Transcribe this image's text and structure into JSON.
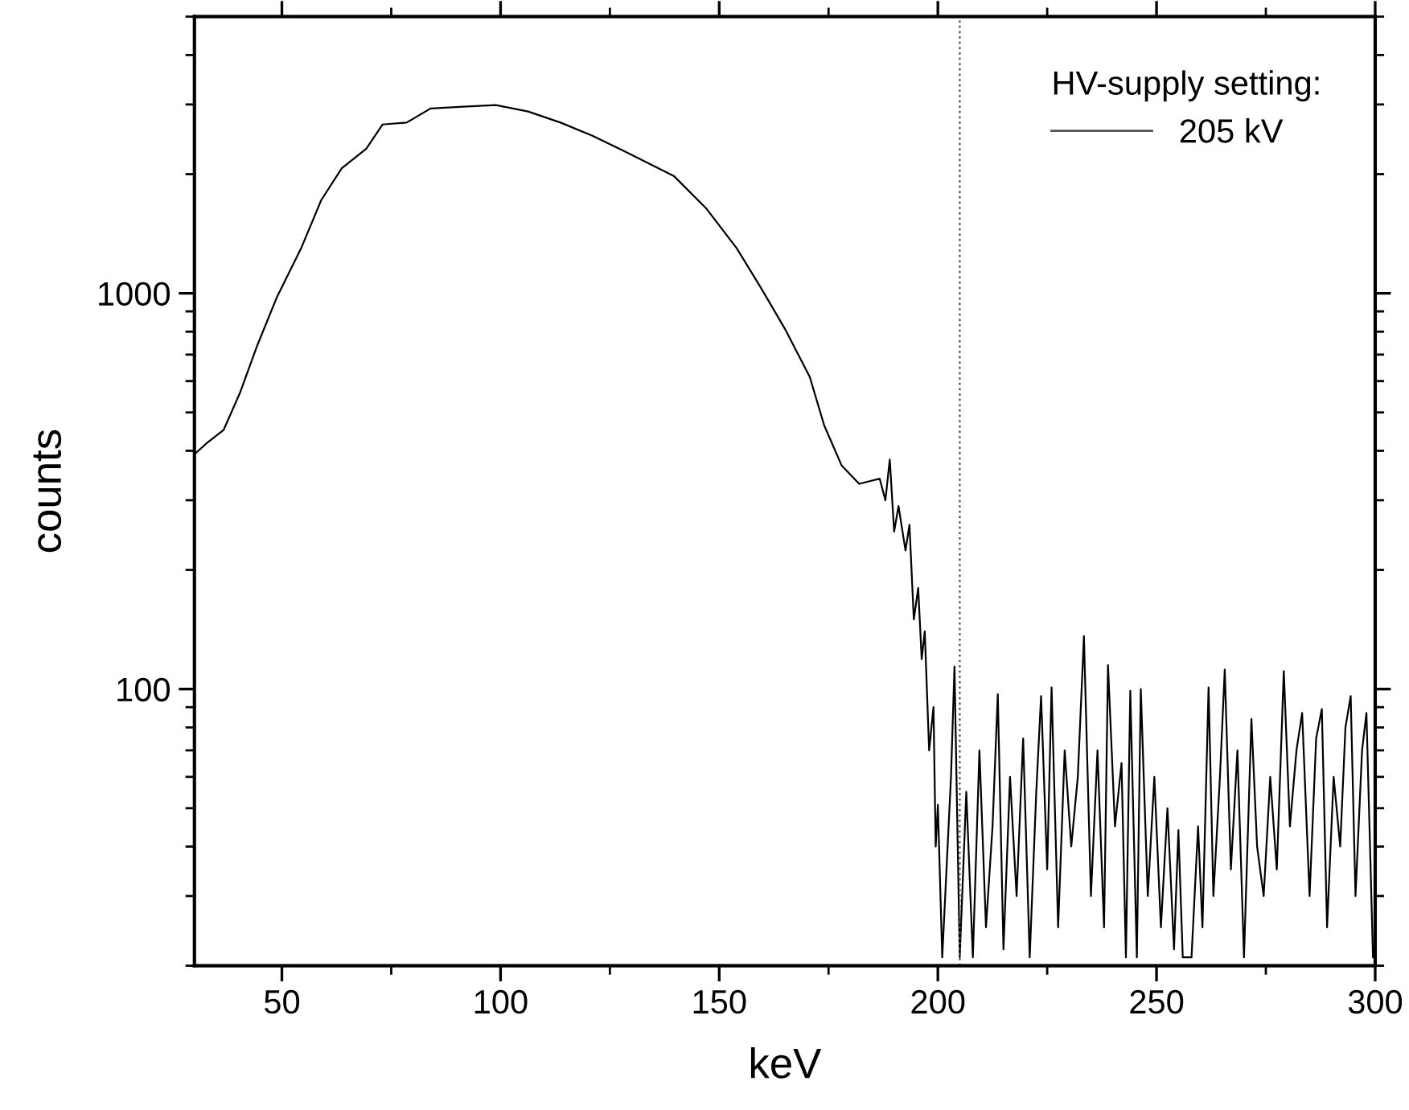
{
  "chart_data": {
    "type": "line",
    "xlabel": "keV",
    "ylabel": "counts",
    "legend_title": "HV-supply setting:",
    "legend": "top right",
    "log": "y",
    "grid": false,
    "marker": "none",
    "line_style": "solid",
    "xlim": [
      30,
      300
    ],
    "xticks": [
      50,
      100,
      150,
      200,
      250,
      300
    ],
    "ylim": [
      20,
      5000
    ],
    "yticks": [
      100,
      1000
    ],
    "ref_lines": [
      {
        "axis": "x",
        "value": 205,
        "color": "#555555",
        "line_style": "dotted"
      }
    ],
    "series": [
      {
        "name": "205 kV",
        "color": "#000000",
        "x": [
          30,
          33,
          36.7,
          40.4,
          44.4,
          48.9,
          54.4,
          59,
          63.7,
          69.3,
          73,
          78.5,
          84,
          91.5,
          98.9,
          106.3,
          113.7,
          121,
          128.5,
          139.6,
          147,
          154,
          159.6,
          165,
          170.7,
          174,
          178,
          182,
          186.7,
          188,
          189,
          190,
          191,
          192.6,
          193.5,
          194.5,
          195.5,
          196.3,
          197,
          198,
          199,
          199.5,
          200,
          201,
          203,
          203.8,
          205,
          206.5,
          208,
          209.5,
          211,
          212.5,
          213.7,
          215,
          216.5,
          218,
          219.5,
          221,
          222.5,
          223.6,
          225,
          226,
          227.5,
          229,
          230.5,
          232,
          233.4,
          235,
          236.5,
          238,
          238.9,
          240.5,
          242,
          243,
          244,
          245.5,
          246.4,
          248,
          249.5,
          251,
          252.5,
          254,
          255,
          256,
          258,
          259.5,
          260.5,
          261.9,
          263,
          264.5,
          265.6,
          267,
          268.5,
          270,
          271.7,
          273,
          274.5,
          276,
          277.5,
          279.1,
          280.5,
          282,
          283.3,
          285,
          286.5,
          287.8,
          289,
          290.5,
          292,
          293.2,
          294.4,
          295.5,
          297,
          298,
          299.5
        ],
        "values": [
          392,
          420,
          452,
          560,
          740,
          980,
          1300,
          1720,
          2070,
          2320,
          2670,
          2700,
          2930,
          2960,
          2990,
          2880,
          2700,
          2500,
          2280,
          1980,
          1640,
          1300,
          1030,
          814,
          615,
          464,
          367,
          330,
          340,
          300,
          380,
          250,
          290,
          224,
          260,
          150,
          180,
          119,
          140,
          70,
          90,
          40,
          51,
          21,
          60,
          114,
          21,
          55,
          21,
          70,
          25,
          45,
          97,
          22,
          60,
          30,
          75,
          21,
          55,
          96,
          35,
          101,
          25,
          70,
          40,
          60,
          136,
          30,
          70,
          25,
          115,
          45,
          65,
          21,
          99,
          21,
          100,
          30,
          60,
          25,
          50,
          22,
          44,
          21,
          21,
          45,
          25,
          101,
          30,
          60,
          112,
          35,
          70,
          21,
          84,
          40,
          30,
          60,
          35,
          111,
          45,
          70,
          87,
          30,
          75,
          89,
          25,
          60,
          40,
          80,
          96,
          30,
          70,
          87,
          21
        ]
      }
    ]
  }
}
